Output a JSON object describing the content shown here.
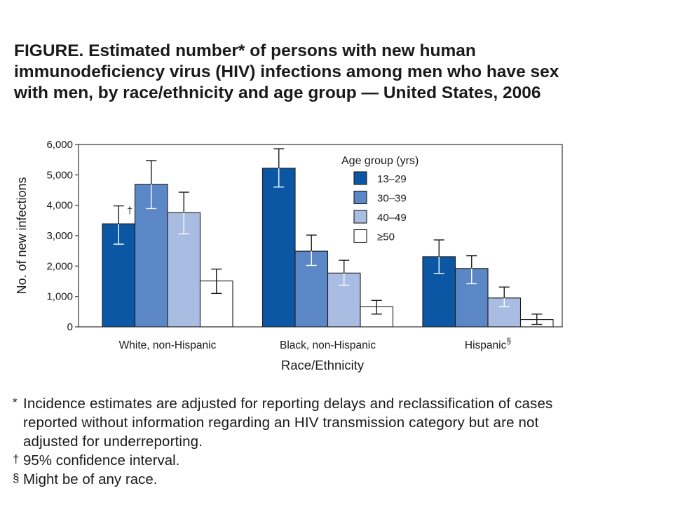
{
  "title": "FIGURE. Estimated number* of persons with new human immunodeficiency virus (HIV) infections among men who have sex with men, by race/ethnicity and age group — United States, 2006",
  "chart_data": {
    "type": "bar",
    "categories": [
      "White, non-Hispanic",
      "Black, non-Hispanic",
      "Hispanic"
    ],
    "category_marks": [
      "",
      "",
      "§"
    ],
    "xlabel": "Race/Ethnicity",
    "ylabel": "No. of new infections",
    "ylim": [
      0,
      6000
    ],
    "yticks": [
      0,
      1000,
      2000,
      3000,
      4000,
      5000,
      6000
    ],
    "ytick_labels": [
      "0",
      "1,000",
      "2,000",
      "3,000",
      "4,000",
      "5,000",
      "6,000"
    ],
    "legend_title": "Age group (yrs)",
    "legend_position": "top-right",
    "series": [
      {
        "name": "13–29",
        "color": "#0b57a4",
        "values": [
          3390,
          5220,
          2310
        ],
        "ci_low": [
          2720,
          4600,
          1760
        ],
        "ci_high": [
          3980,
          5860,
          2860
        ]
      },
      {
        "name": "30–39",
        "color": "#5b87c6",
        "values": [
          4690,
          2490,
          1920
        ],
        "ci_low": [
          3890,
          2020,
          1420
        ],
        "ci_high": [
          5470,
          3020,
          2340
        ]
      },
      {
        "name": "40–49",
        "color": "#a9bde3",
        "values": [
          3760,
          1770,
          950
        ],
        "ci_low": [
          3060,
          1370,
          660
        ],
        "ci_high": [
          4430,
          2190,
          1310
        ]
      },
      {
        "name": "≥50",
        "color": "#ffffff",
        "values": [
          1510,
          660,
          240
        ],
        "ci_low": [
          1100,
          420,
          80
        ],
        "ci_high": [
          1900,
          870,
          420
        ]
      }
    ],
    "annotations": [
      {
        "series": 0,
        "category": 0,
        "text": "†"
      }
    ]
  },
  "footnotes": [
    {
      "mark": "*",
      "text": "Incidence estimates are adjusted for reporting delays and reclassification of cases reported without information regarding an HIV transmission category but are not adjusted for underreporting."
    },
    {
      "mark": "†",
      "text": "95% confidence interval."
    },
    {
      "mark": "§",
      "text": "Might be of any race."
    }
  ]
}
